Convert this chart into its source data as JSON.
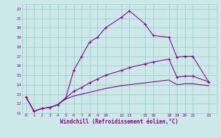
{
  "xlabel": "Windchill (Refroidissement éolien,°C)",
  "bg_color": "#cce8e8",
  "grid_color": "#99cccc",
  "line_color": "#880088",
  "xlim": [
    -0.5,
    24.0
  ],
  "ylim": [
    11,
    22.5
  ],
  "xticks": [
    0,
    1,
    2,
    3,
    4,
    5,
    6,
    7,
    8,
    9,
    10,
    12,
    13,
    15,
    16,
    18,
    19,
    20,
    21,
    23
  ],
  "yticks": [
    11,
    12,
    13,
    14,
    15,
    16,
    17,
    18,
    19,
    20,
    21,
    22
  ],
  "line1_x": [
    0,
    1,
    2,
    3,
    4,
    5,
    6,
    7,
    8,
    9,
    10,
    12,
    13,
    15,
    16,
    18,
    19,
    20,
    21,
    23
  ],
  "line1_y": [
    12.7,
    11.2,
    11.5,
    11.6,
    11.9,
    12.6,
    15.5,
    17.0,
    18.5,
    19.0,
    20.0,
    21.1,
    21.8,
    20.4,
    19.2,
    19.0,
    16.9,
    17.0,
    17.0,
    14.3
  ],
  "line2_x": [
    0,
    1,
    2,
    3,
    4,
    5,
    6,
    7,
    8,
    9,
    10,
    12,
    13,
    15,
    16,
    18,
    19,
    20,
    21,
    23
  ],
  "line2_y": [
    12.7,
    11.2,
    11.5,
    11.6,
    11.9,
    12.6,
    13.3,
    13.7,
    14.2,
    14.6,
    15.0,
    15.5,
    15.8,
    16.2,
    16.4,
    16.7,
    14.8,
    14.9,
    14.9,
    14.3
  ],
  "line3_x": [
    0,
    1,
    2,
    3,
    4,
    5,
    6,
    7,
    8,
    9,
    10,
    12,
    13,
    15,
    16,
    18,
    19,
    20,
    21,
    23
  ],
  "line3_y": [
    12.7,
    11.2,
    11.5,
    11.6,
    11.9,
    12.5,
    12.8,
    13.0,
    13.2,
    13.4,
    13.6,
    13.9,
    14.0,
    14.2,
    14.3,
    14.5,
    14.0,
    14.1,
    14.1,
    13.9
  ]
}
